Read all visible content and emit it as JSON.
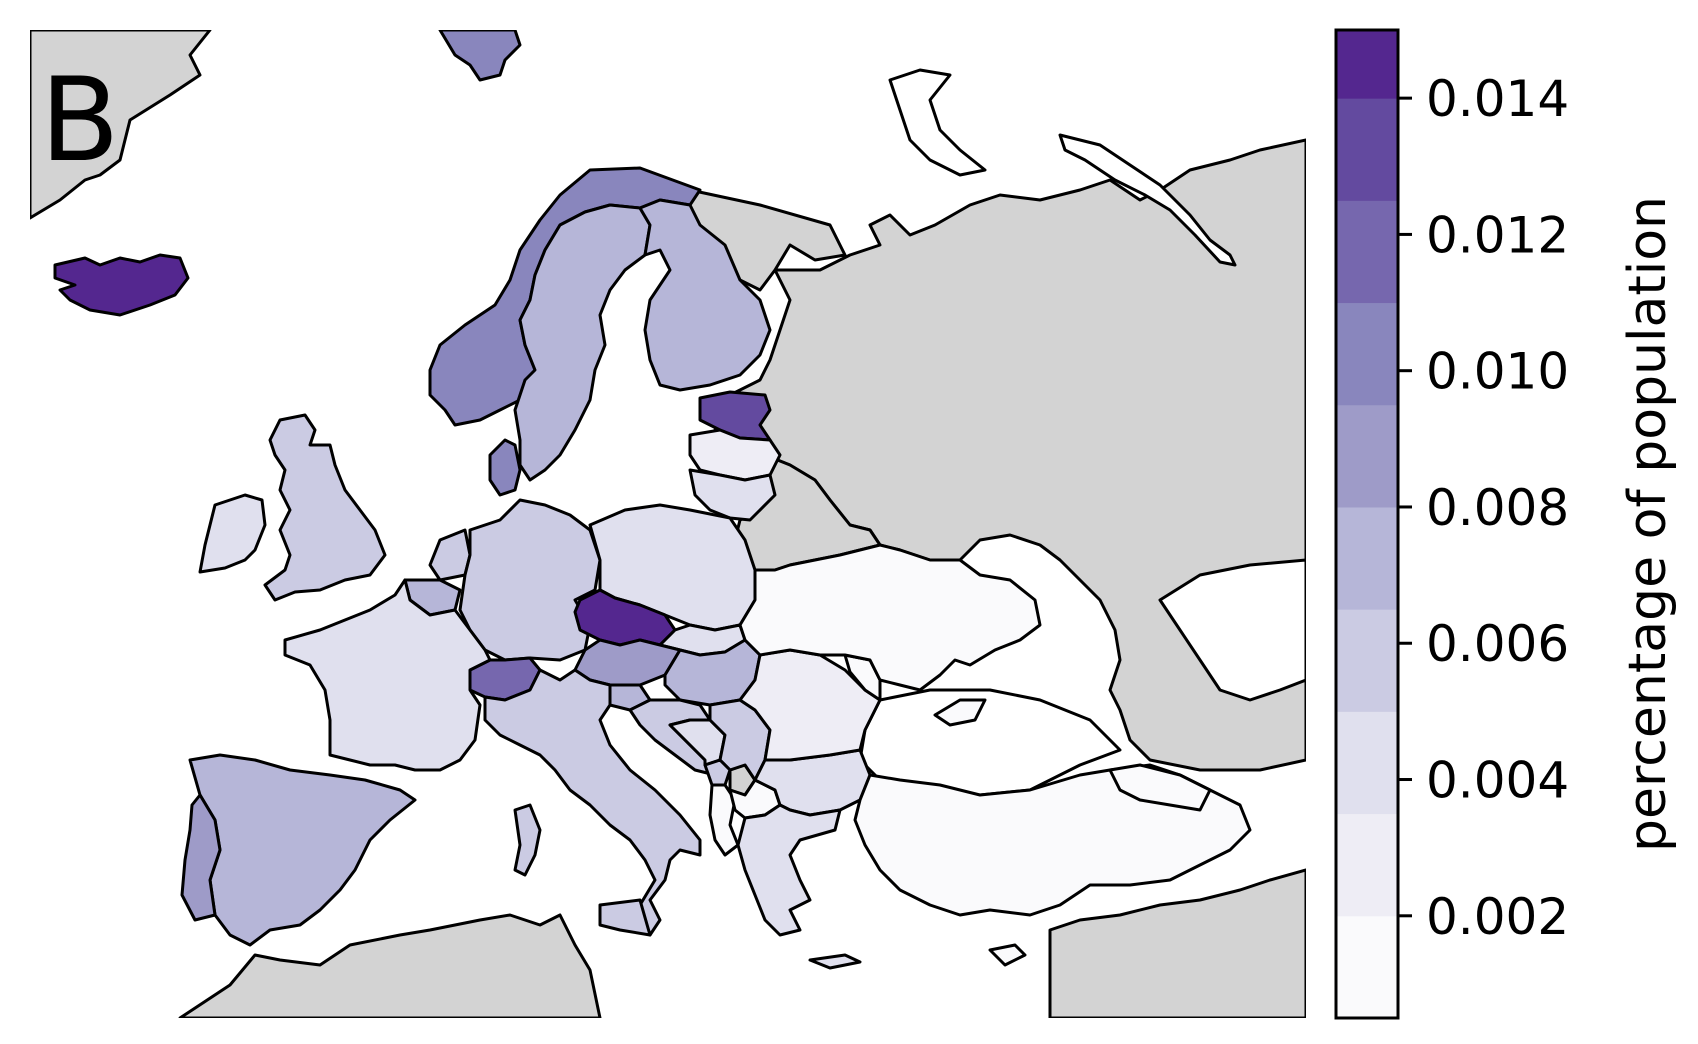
{
  "panel_label": "B",
  "colorbar": {
    "label": "percentage of population",
    "range": [
      0.0005,
      0.015
    ],
    "ticks": [
      "0.002",
      "0.004",
      "0.006",
      "0.008",
      "0.010",
      "0.012",
      "0.014"
    ],
    "tick_values": [
      0.002,
      0.004,
      0.006,
      0.008,
      0.01,
      0.012,
      0.014
    ],
    "bins": [
      {
        "from": 0.0005,
        "to": 0.002,
        "color": "#fafafc"
      },
      {
        "from": 0.002,
        "to": 0.0035,
        "color": "#eeedf5"
      },
      {
        "from": 0.0035,
        "to": 0.005,
        "color": "#e0e0ee"
      },
      {
        "from": 0.005,
        "to": 0.0065,
        "color": "#cbcbe3"
      },
      {
        "from": 0.0065,
        "to": 0.008,
        "color": "#b6b6d8"
      },
      {
        "from": 0.008,
        "to": 0.0095,
        "color": "#9e9bc8"
      },
      {
        "from": 0.0095,
        "to": 0.011,
        "color": "#8986bd"
      },
      {
        "from": 0.011,
        "to": 0.0125,
        "color": "#7667ae"
      },
      {
        "from": 0.0125,
        "to": 0.014,
        "color": "#634a9f"
      },
      {
        "from": 0.014,
        "to": 0.015,
        "color": "#54278f"
      }
    ]
  },
  "no_data_color": "#d3d3d3",
  "regions": [
    {
      "name": "Iceland",
      "value": 0.0145
    },
    {
      "name": "Czechia",
      "value": 0.0145
    },
    {
      "name": "Estonia",
      "value": 0.013
    },
    {
      "name": "Switzerland",
      "value": 0.011
    },
    {
      "name": "Norway",
      "value": 0.0105
    },
    {
      "name": "Denmark",
      "value": 0.0095
    },
    {
      "name": "Svalbard",
      "value": 0.0095
    },
    {
      "name": "Sweden",
      "value": 0.0075
    },
    {
      "name": "Finland",
      "value": 0.0075
    },
    {
      "name": "Spain",
      "value": 0.0075
    },
    {
      "name": "Portugal",
      "value": 0.0085
    },
    {
      "name": "Austria",
      "value": 0.008
    },
    {
      "name": "Hungary",
      "value": 0.0075
    },
    {
      "name": "Belgium",
      "value": 0.007
    },
    {
      "name": "Slovenia",
      "value": 0.007
    },
    {
      "name": "Netherlands",
      "value": 0.006
    },
    {
      "name": "Germany",
      "value": 0.0055
    },
    {
      "name": "United Kingdom",
      "value": 0.0055
    },
    {
      "name": "Italy",
      "value": 0.0055
    },
    {
      "name": "Malta",
      "value": 0.0055
    },
    {
      "name": "Croatia",
      "value": 0.006
    },
    {
      "name": "Ireland",
      "value": 0.0045
    },
    {
      "name": "France",
      "value": 0.0045
    },
    {
      "name": "Poland",
      "value": 0.0045
    },
    {
      "name": "Slovakia",
      "value": 0.0045
    },
    {
      "name": "Lithuania",
      "value": 0.0045
    },
    {
      "name": "Serbia",
      "value": 0.005
    },
    {
      "name": "Montenegro",
      "value": 0.005
    },
    {
      "name": "Bosnia and Herzegovina",
      "value": 0.0035
    },
    {
      "name": "Bulgaria",
      "value": 0.0045
    },
    {
      "name": "Greece",
      "value": 0.0045
    },
    {
      "name": "Latvia",
      "value": 0.0025
    },
    {
      "name": "Romania",
      "value": 0.002
    },
    {
      "name": "Ukraine",
      "value": 0.0015
    },
    {
      "name": "Moldova",
      "value": 0.0015
    },
    {
      "name": "Turkey",
      "value": 0.0015
    },
    {
      "name": "Georgia",
      "value": 0.0015
    },
    {
      "name": "Cyprus",
      "value": 0.0015
    },
    {
      "name": "Albania",
      "value": 0.0015
    },
    {
      "name": "North Macedonia",
      "value": 0.0015
    }
  ],
  "no_data_regions": [
    "Russia",
    "Belarus",
    "Kosovo",
    "Greenland",
    "North Africa",
    "Middle East"
  ]
}
